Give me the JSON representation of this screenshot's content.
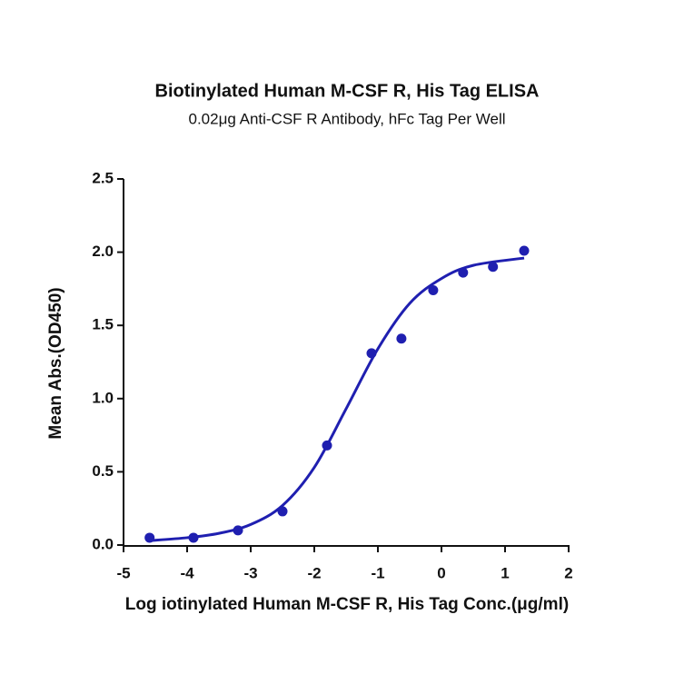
{
  "chart_data": {
    "type": "scatter",
    "title": "Biotinylated Human M-CSF R, His Tag ELISA",
    "subtitle": "0.02μg Anti-CSF R Antibody, hFc Tag Per Well",
    "x_label": "Log iotinylated Human M-CSF R, His Tag Conc.(μg/ml)",
    "y_label": "Mean Abs.(OD450)",
    "color": "#1f1fb0",
    "points": {
      "x": [
        -4.59,
        -3.9,
        -3.2,
        -2.5,
        -1.8,
        -1.1,
        -0.63,
        -0.13,
        0.34,
        0.81,
        1.3
      ],
      "y": [
        0.05,
        0.05,
        0.1,
        0.23,
        0.68,
        1.31,
        1.41,
        1.74,
        1.86,
        1.9,
        2.01
      ]
    },
    "curve": {
      "x": [
        -4.6,
        -4,
        -3.5,
        -3,
        -2.5,
        -2,
        -1.5,
        -1,
        -0.5,
        0,
        0.5,
        1.3
      ],
      "y": [
        0.03,
        0.05,
        0.08,
        0.14,
        0.27,
        0.53,
        0.93,
        1.34,
        1.65,
        1.82,
        1.91,
        1.96
      ]
    },
    "xlim": [
      -5,
      2
    ],
    "xticks": [
      -5,
      -4,
      -3,
      -2,
      -1,
      0,
      1,
      2
    ],
    "ylim": [
      0,
      2.5
    ],
    "yticks": [
      {
        "value": 0,
        "label": "0.0"
      },
      0.5,
      {
        "value": 1,
        "label": "1.0"
      },
      1.5,
      {
        "value": 2,
        "label": "2.0"
      },
      2.5
    ]
  }
}
